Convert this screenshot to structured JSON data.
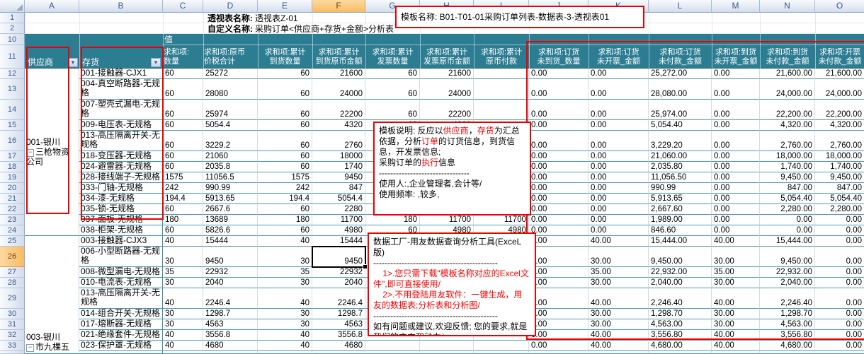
{
  "colors": {
    "header_teal": "#2D7D92",
    "row_line_teal": "#3D93AD",
    "annotation_red": "#EC0000",
    "selection_orange": "#F8BC63",
    "grid_line": "#D2DBE7"
  },
  "sheet": {
    "col_letters": [
      "",
      "A",
      "B",
      "C",
      "D",
      "E",
      "F",
      "G",
      "H",
      "I",
      "J",
      "K",
      "L",
      "M",
      "N",
      "O"
    ],
    "selected_col_letter": "F",
    "selected_row": 26,
    "active_cell": "F26",
    "active_cell_value": "9450",
    "top_row_numbers": [
      "1",
      "2",
      "10",
      "11"
    ]
  },
  "meta": {
    "r1_label": "透视表名称:",
    "r1_value": "透视表Z-01",
    "r2_label": "自定义名称:",
    "r2_value": "采购订单<供应商+存货+金额>分析表"
  },
  "pivot": {
    "values_caption": "值",
    "row_fields": [
      "供应商",
      "存货"
    ],
    "value_headers": [
      [
        "求和项:",
        "数量"
      ],
      [
        "求和项:原币",
        "价税合计"
      ],
      [
        "求和项:累计",
        "到货数量"
      ],
      [
        "求和项:累计",
        "到货原币金额"
      ],
      [
        "求和项:累计",
        "发票数量"
      ],
      [
        "求和项:累计",
        "发票原币金额"
      ],
      [
        "求和项:累计",
        "原币付款"
      ],
      [
        "求和项:订货",
        "未到货_数量"
      ],
      [
        "求和项:订货",
        "未开票_金额"
      ],
      [
        "求和项:订货",
        "未付款_金额"
      ],
      [
        "求和项:到货",
        "未开票_金额"
      ],
      [
        "求和项:到货",
        "未付款_金额"
      ],
      [
        "求和项:开票",
        "未付款_金额"
      ]
    ]
  },
  "suppliers": [
    {
      "id": "001",
      "lines": [
        "001-银川",
        "三枪物资",
        "公司"
      ],
      "collapse_line": 1,
      "row_start": 12,
      "row_end": 24,
      "bottom": false
    },
    {
      "id": "003",
      "lines": [
        "003-银川",
        "市九棵五"
      ],
      "collapse_line": 1,
      "row_start": 25,
      "row_end": 33,
      "bottom": true
    }
  ],
  "rows": [
    {
      "n": 12,
      "tall": false,
      "item": "001-接触器-CJX1",
      "v": [
        "60",
        "25272",
        "60",
        "21600",
        "60",
        "21600",
        "",
        "0.00",
        "0.00",
        "25,272.00",
        "0.00",
        "21,600.00",
        "21,600.00"
      ]
    },
    {
      "n": 13,
      "tall": true,
      "item": "004-真空断路器-无规格",
      "v": [
        "60",
        "28080",
        "60",
        "24000",
        "60",
        "24000",
        "",
        "0.00",
        "0.00",
        "28,080.00",
        "0.00",
        "24,000.00",
        "24,000.00"
      ]
    },
    {
      "n": 14,
      "tall": true,
      "item": "007-塑壳式漏电-无规格",
      "v": [
        "60",
        "25974",
        "60",
        "22200",
        "60",
        "22200",
        "",
        "0.00",
        "0.00",
        "25,974.00",
        "0.00",
        "22,200.00",
        "22,200.00"
      ]
    },
    {
      "n": 15,
      "tall": false,
      "item": "009-电压表-无规格",
      "v": [
        "60",
        "5054.4",
        "60",
        "4320",
        "60",
        "4320",
        "",
        "0.00",
        "0.00",
        "5,054.40",
        "0.00",
        "4,320.00",
        "4,320.00"
      ]
    },
    {
      "n": 16,
      "tall": true,
      "item": "013-高压隔离开关-无规格",
      "v": [
        "60",
        "3229.2",
        "60",
        "2760",
        "",
        "",
        "",
        "0.00",
        "0.00",
        "3,229.20",
        "0.00",
        "2,760.00",
        "2,760.00"
      ]
    },
    {
      "n": 17,
      "tall": false,
      "item": "018-变压器-无规格",
      "v": [
        "60",
        "21060",
        "60",
        "18000",
        "",
        "",
        "",
        "0.00",
        "0.00",
        "21,060.00",
        "0.00",
        "18,000.00",
        "18,000.00"
      ]
    },
    {
      "n": 18,
      "tall": false,
      "item": "024-避雷器-无规格",
      "v": [
        "60",
        "2035.8",
        "60",
        "1740",
        "",
        "",
        "",
        "0.00",
        "0.00",
        "2,035.80",
        "0.00",
        "1,740.00",
        "1,740.00"
      ]
    },
    {
      "n": 19,
      "tall": false,
      "item": "028-接线端子-无规格",
      "v": [
        "1575",
        "11056.5",
        "1575",
        "9450",
        "",
        "",
        "",
        "0.00",
        "0.00",
        "11,056.50",
        "0.00",
        "9,450.00",
        "9,450.00"
      ]
    },
    {
      "n": 20,
      "tall": false,
      "item": "033-门轴-无规格",
      "v": [
        "242",
        "990.99",
        "242",
        "847",
        "",
        "",
        "",
        "0.00",
        "0.00",
        "990.99",
        "0.00",
        "847.00",
        "847.00"
      ]
    },
    {
      "n": 21,
      "tall": false,
      "item": "034-漆-无规格",
      "v": [
        "194.4",
        "5913.65",
        "194.4",
        "5054.4",
        "",
        "",
        "",
        "0.00",
        "0.00",
        "5,913.65",
        "0.00",
        "5,054.40",
        "5,054.40"
      ]
    },
    {
      "n": 22,
      "tall": false,
      "item": "035-锁-无规格",
      "v": [
        "60",
        "2667.6",
        "60",
        "2280",
        "",
        "",
        "",
        "0.00",
        "0.00",
        "2,667.60",
        "0.00",
        "2,280.00",
        "2,280.00"
      ]
    },
    {
      "n": 23,
      "tall": false,
      "item": "037-面板-无规格",
      "v": [
        "180",
        "13689",
        "180",
        "11700",
        "180",
        "11700",
        "11700",
        "0.00",
        "0.00",
        "1,989.00",
        "0.00",
        "0.00",
        "0.00"
      ]
    },
    {
      "n": 24,
      "tall": false,
      "item": "038-柜架-无规格",
      "v": [
        "60",
        "5826.6",
        "60",
        "4980",
        "60",
        "4980",
        "4980",
        "0.00",
        "0.00",
        "846.60",
        "0.00",
        "0.00",
        "0.00"
      ]
    },
    {
      "n": 25,
      "tall": false,
      "item": "003-接触器-CJX3",
      "v": [
        "40",
        "15444",
        "40",
        "15444",
        "",
        "",
        "",
        "0.00",
        "40.00",
        "15,444.00",
        "40.00",
        "15,444.00",
        "0.00"
      ]
    },
    {
      "n": 26,
      "tall": true,
      "item": "006-小型断路器-无规格",
      "v": [
        "30",
        "9450",
        "30",
        "9450",
        "",
        "",
        "",
        "0.00",
        "30.00",
        "9,450.00",
        "30.00",
        "9,450.00",
        "0.00"
      ]
    },
    {
      "n": 27,
      "tall": false,
      "item": "008-微型漏电-无规格",
      "v": [
        "35",
        "22932",
        "35",
        "22932",
        "",
        "",
        "",
        "0.00",
        "35.00",
        "22,932.00",
        "35.00",
        "22,932.00",
        "0.00"
      ]
    },
    {
      "n": 28,
      "tall": false,
      "item": "010-电流表-无规格",
      "v": [
        "30",
        "2040",
        "30",
        "2040",
        "",
        "",
        "",
        "0.00",
        "30.00",
        "2,040.00",
        "30.00",
        "2,040.00",
        "0.00"
      ]
    },
    {
      "n": 29,
      "tall": true,
      "item": "013-高压隔离开关-无规格",
      "v": [
        "40",
        "2246.4",
        "40",
        "2246.4",
        "",
        "",
        "",
        "0.00",
        "40.00",
        "2,246.40",
        "40.00",
        "2,246.40",
        "0.00"
      ]
    },
    {
      "n": 30,
      "tall": false,
      "item": "014-组合开关-无规格",
      "v": [
        "30",
        "1298.7",
        "30",
        "1298.7",
        "",
        "",
        "",
        "0.00",
        "30.00",
        "1,298.70",
        "30.00",
        "1,298.70",
        "0.00"
      ]
    },
    {
      "n": 31,
      "tall": false,
      "item": "017-熔断器-无规格",
      "v": [
        "30",
        "4563",
        "30",
        "4563",
        "",
        "",
        "",
        "0.00",
        "30.00",
        "4,563.00",
        "30.00",
        "4,563.00",
        "0.00"
      ]
    },
    {
      "n": 32,
      "tall": false,
      "item": "021-绝缘套件-无规格",
      "v": [
        "40",
        "3556.8",
        "40",
        "3556.8",
        "",
        "",
        "",
        "0.00",
        "40.00",
        "3,556.80",
        "40.00",
        "3,556.80",
        "0.00"
      ]
    },
    {
      "n": 33,
      "tall": false,
      "item": "023-保护罩-无规格",
      "v": [
        "40",
        "4680",
        "40",
        "4680",
        "",
        "",
        "",
        "0.00",
        "40.00",
        "4,680.00",
        "40.00",
        "4,680.00",
        "0.00"
      ]
    }
  ],
  "annotations": {
    "template_box": {
      "text": "模板名称:  B01-T01-01采购订单列表-数据表-3-透视表01"
    },
    "note_box": {
      "paragraphs": [
        [
          {
            "t": "模板说明: 反应以"
          },
          {
            "t": "供应商",
            "r": true
          },
          {
            "t": "，"
          },
          {
            "t": "存货",
            "r": true
          },
          {
            "t": "为汇总依据，分析"
          },
          {
            "t": "订单",
            "r": true
          },
          {
            "t": "的订货信息，到货信息，开发票信息;"
          }
        ],
        [
          {
            "t": "采购订单的"
          },
          {
            "t": "执行",
            "r": true
          },
          {
            "t": "信息"
          }
        ],
        [
          {
            "t": "--------------------------------"
          }
        ],
        [
          {
            "t": "使用人:,企业管理者,会计等/"
          }
        ],
        [
          {
            "t": "使用频率: ,较多,"
          }
        ]
      ]
    },
    "factory_box": {
      "paragraphs": [
        [
          {
            "t": "数据工厂-用友数据查询分析工具(ExceL版)"
          }
        ],
        [
          {
            "t": "--------------------------------------------"
          }
        ],
        [
          {
            "t": "    1>.您只需下载\"模板名称对应的Excel文件\",即可直接使用/",
            "r": true
          }
        ],
        [
          {
            "t": "    2>.不用登陆用友软件：一键生成，用友的数据表;分析表和分析图/",
            "r": true
          }
        ],
        [
          {
            "t": "--------------------------------------------"
          }
        ],
        [
          {
            "t": "如有问题或建议,欢迎反馈; 您的要求,就是我们的方向和动力/"
          }
        ]
      ]
    }
  }
}
